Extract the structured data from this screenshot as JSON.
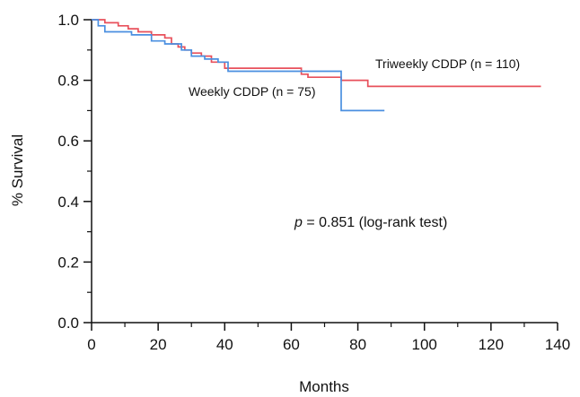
{
  "chart_data": {
    "type": "line",
    "step": true,
    "xlabel": "Months",
    "ylabel": "% Survival",
    "xlim": [
      0,
      140
    ],
    "ylim": [
      0.0,
      1.0
    ],
    "x_ticks": [
      0,
      20,
      40,
      60,
      80,
      100,
      120,
      140
    ],
    "x_tick_labels": [
      "0",
      "20",
      "40",
      "60",
      "80",
      "100",
      "120",
      "140"
    ],
    "y_ticks": [
      0.0,
      0.2,
      0.4,
      0.6,
      0.8,
      1.0
    ],
    "y_tick_labels": [
      "0.0",
      "0.2",
      "0.4",
      "0.6",
      "0.8",
      "1.0"
    ],
    "grid": false,
    "series": [
      {
        "name": "Triweekly CDDP (n = 110)",
        "color": "#e8505b",
        "x": [
          0,
          4,
          8,
          11,
          14,
          18,
          22,
          24,
          26,
          28,
          30,
          33,
          36,
          40,
          48,
          63,
          65,
          75,
          80,
          83,
          135
        ],
        "y": [
          1.0,
          0.99,
          0.98,
          0.97,
          0.96,
          0.95,
          0.94,
          0.92,
          0.91,
          0.9,
          0.89,
          0.88,
          0.86,
          0.84,
          0.84,
          0.82,
          0.81,
          0.8,
          0.8,
          0.78,
          0.78
        ]
      },
      {
        "name": "Weekly CDDP (n = 75)",
        "color": "#4a8fe0",
        "x": [
          0,
          2,
          4,
          12,
          18,
          22,
          27,
          30,
          34,
          38,
          41,
          74,
          75,
          88
        ],
        "y": [
          1.0,
          0.98,
          0.96,
          0.95,
          0.93,
          0.92,
          0.9,
          0.88,
          0.87,
          0.86,
          0.83,
          0.83,
          0.7,
          0.7
        ]
      }
    ],
    "annotation": {
      "p_symbol": "p",
      "text": " = 0.851 (log-rank test)"
    }
  }
}
